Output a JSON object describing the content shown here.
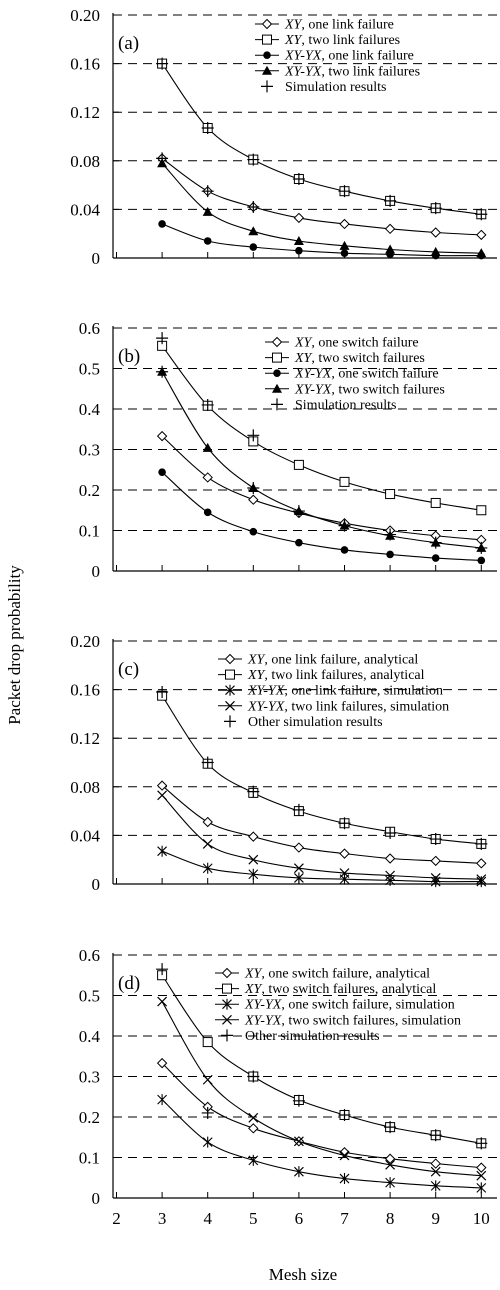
{
  "y_axis_label": "Packet drop probability",
  "x_axis_label": "Mesh size",
  "chart_data": [
    {
      "type": "line",
      "panel_label": "(a)",
      "xlabel": "Mesh size",
      "ylabel": "Packet drop probability",
      "xlim": [
        2,
        10.5
      ],
      "ylim": [
        0,
        0.2
      ],
      "yticks": [
        "0",
        "0.04",
        "0.08",
        "0.12",
        "0.16",
        "0.20"
      ],
      "grid": "dashed horizontal",
      "legend_position": "top-right",
      "series": [
        {
          "name_prefix": "XY",
          "name_suffix": ", one link failure",
          "marker": "diamond",
          "x": [
            3,
            4,
            5,
            6,
            7,
            8,
            9,
            10
          ],
          "values": [
            0.082,
            0.055,
            0.042,
            0.033,
            0.028,
            0.024,
            0.021,
            0.019
          ]
        },
        {
          "name_prefix": "XY",
          "name_suffix": ", two link failures",
          "marker": "square",
          "x": [
            3,
            4,
            5,
            6,
            7,
            8,
            9,
            10
          ],
          "values": [
            0.16,
            0.107,
            0.081,
            0.065,
            0.055,
            0.047,
            0.041,
            0.036
          ]
        },
        {
          "name_prefix": "XY-YX",
          "name_suffix": ", one link failure",
          "marker": "circle",
          "x": [
            3,
            4,
            5,
            6,
            7,
            8,
            9,
            10
          ],
          "values": [
            0.028,
            0.014,
            0.009,
            0.006,
            0.004,
            0.003,
            0.002,
            0.002
          ]
        },
        {
          "name_prefix": "XY-YX",
          "name_suffix": ", two link failures",
          "marker": "triangle",
          "x": [
            3,
            4,
            5,
            6,
            7,
            8,
            9,
            10
          ],
          "values": [
            0.078,
            0.038,
            0.022,
            0.014,
            0.01,
            0.007,
            0.005,
            0.004
          ]
        }
      ],
      "simulation": {
        "name": "Simulation results",
        "marker": "plus",
        "x": [
          3,
          3,
          4,
          4,
          5,
          5,
          6,
          7,
          8,
          9,
          10
        ],
        "values": [
          0.16,
          0.082,
          0.107,
          0.055,
          0.081,
          0.042,
          0.065,
          0.055,
          0.047,
          0.041,
          0.036
        ]
      }
    },
    {
      "type": "line",
      "panel_label": "(b)",
      "xlabel": "Mesh size",
      "ylabel": "Packet drop probability",
      "xlim": [
        2,
        10.5
      ],
      "ylim": [
        0,
        0.6
      ],
      "yticks": [
        "0",
        "0.1",
        "0.2",
        "0.3",
        "0.4",
        "0.5",
        "0.6"
      ],
      "grid": "dashed horizontal",
      "legend_position": "top-right",
      "series": [
        {
          "name_prefix": "XY",
          "name_suffix": ", one switch failure",
          "marker": "diamond",
          "x": [
            3,
            4,
            5,
            6,
            7,
            8,
            9,
            10
          ],
          "values": [
            0.333,
            0.231,
            0.176,
            0.143,
            0.118,
            0.1,
            0.087,
            0.077
          ]
        },
        {
          "name_prefix": "XY",
          "name_suffix": ", two switch failures",
          "marker": "square",
          "x": [
            3,
            4,
            5,
            6,
            7,
            8,
            9,
            10
          ],
          "values": [
            0.556,
            0.408,
            0.32,
            0.262,
            0.22,
            0.19,
            0.168,
            0.15
          ]
        },
        {
          "name_prefix": "XY-YX",
          "name_suffix": ", one switch failure",
          "marker": "circle",
          "x": [
            3,
            4,
            5,
            6,
            7,
            8,
            9,
            10
          ],
          "values": [
            0.244,
            0.145,
            0.097,
            0.07,
            0.052,
            0.041,
            0.032,
            0.026
          ]
        },
        {
          "name_prefix": "XY-YX",
          "name_suffix": ", two switch failures",
          "marker": "triangle",
          "x": [
            3,
            4,
            5,
            6,
            7,
            8,
            9,
            10
          ],
          "values": [
            0.492,
            0.304,
            0.205,
            0.148,
            0.112,
            0.087,
            0.07,
            0.057
          ]
        }
      ],
      "simulation": {
        "name": "Simulation results",
        "marker": "plus",
        "x": [
          3,
          3,
          4,
          5,
          5,
          6,
          7,
          8,
          9,
          10
        ],
        "values": [
          0.575,
          0.492,
          0.41,
          0.335,
          0.205,
          0.148,
          0.112,
          0.09,
          0.07,
          0.057
        ]
      }
    },
    {
      "type": "line",
      "panel_label": "(c)",
      "xlabel": "Mesh size",
      "ylabel": "Packet drop probability",
      "xlim": [
        2,
        10.5
      ],
      "ylim": [
        0,
        0.2
      ],
      "yticks": [
        "0",
        "0.04",
        "0.08",
        "0.12",
        "0.16",
        "0.20"
      ],
      "grid": "dashed horizontal",
      "legend_position": "top-right",
      "series": [
        {
          "name_prefix": "XY",
          "name_suffix": ", one link failure, analytical",
          "marker": "diamond",
          "x": [
            3,
            4,
            5,
            6,
            7,
            8,
            9,
            10
          ],
          "values": [
            0.081,
            0.051,
            0.039,
            0.03,
            0.025,
            0.021,
            0.019,
            0.017
          ]
        },
        {
          "name_prefix": "XY",
          "name_suffix": ", two link failures, analytical",
          "marker": "square",
          "x": [
            3,
            4,
            5,
            6,
            7,
            8,
            9,
            10
          ],
          "values": [
            0.155,
            0.099,
            0.075,
            0.06,
            0.05,
            0.043,
            0.037,
            0.033
          ]
        },
        {
          "name_prefix": "XY-YX",
          "name_suffix": ", one link failure, simulation",
          "marker": "asterisk",
          "x": [
            3,
            4,
            5,
            6,
            7,
            8,
            9,
            10
          ],
          "values": [
            0.027,
            0.013,
            0.008,
            0.005,
            0.004,
            0.003,
            0.002,
            0.002
          ]
        },
        {
          "name_prefix": "XY-YX",
          "name_suffix": ", two link failures, simulation",
          "marker": "cross",
          "x": [
            3,
            4,
            5,
            6,
            7,
            8,
            9,
            10
          ],
          "values": [
            0.073,
            0.033,
            0.02,
            0.013,
            0.009,
            0.007,
            0.005,
            0.004
          ]
        }
      ],
      "simulation": {
        "name": "Other simulation results",
        "marker": "plus",
        "x": [
          3,
          4,
          5,
          6,
          7,
          8,
          9,
          10
        ],
        "values": [
          0.158,
          0.1,
          0.076,
          0.061,
          0.05,
          0.042,
          0.037,
          0.033
        ]
      }
    },
    {
      "type": "line",
      "panel_label": "(d)",
      "xlabel": "Mesh size",
      "ylabel": "Packet drop probability",
      "xlim": [
        2,
        10.5
      ],
      "ylim": [
        0,
        0.6
      ],
      "yticks": [
        "0",
        "0.1",
        "0.2",
        "0.3",
        "0.4",
        "0.5",
        "0.6"
      ],
      "xticks": [
        "2",
        "3",
        "4",
        "5",
        "6",
        "7",
        "8",
        "9",
        "10"
      ],
      "grid": "dashed horizontal",
      "legend_position": "top-right",
      "series": [
        {
          "name_prefix": "XY",
          "name_suffix": ", one switch failure, analytical",
          "marker": "diamond",
          "x": [
            3,
            4,
            5,
            6,
            7,
            8,
            9,
            10
          ],
          "values": [
            0.333,
            0.225,
            0.172,
            0.14,
            0.113,
            0.097,
            0.085,
            0.075
          ]
        },
        {
          "name_prefix": "XY",
          "name_suffix": ", two switch failures, analytical",
          "marker": "square",
          "x": [
            3,
            4,
            5,
            6,
            7,
            8,
            9,
            10
          ],
          "values": [
            0.55,
            0.385,
            0.3,
            0.242,
            0.205,
            0.175,
            0.155,
            0.135
          ]
        },
        {
          "name_prefix": "XY-YX",
          "name_suffix": ", one switch failure, simulation",
          "marker": "asterisk",
          "x": [
            3,
            4,
            5,
            6,
            7,
            8,
            9,
            10
          ],
          "values": [
            0.243,
            0.138,
            0.093,
            0.065,
            0.048,
            0.038,
            0.03,
            0.025
          ]
        },
        {
          "name_prefix": "XY-YX",
          "name_suffix": ", two switch failures, simulation",
          "marker": "cross",
          "x": [
            3,
            4,
            5,
            6,
            7,
            8,
            9,
            10
          ],
          "values": [
            0.485,
            0.292,
            0.198,
            0.14,
            0.105,
            0.082,
            0.065,
            0.055
          ]
        }
      ],
      "simulation": {
        "name": "Other simulation results",
        "marker": "plus",
        "x": [
          3,
          4,
          5,
          6,
          7,
          8,
          9,
          10
        ],
        "values": [
          0.565,
          0.21,
          0.3,
          0.24,
          0.205,
          0.175,
          0.155,
          0.135
        ]
      }
    }
  ]
}
